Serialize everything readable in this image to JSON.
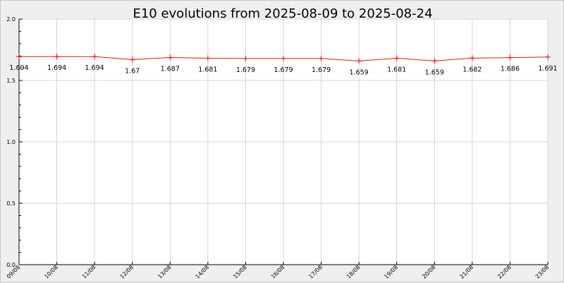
{
  "chart_data": {
    "type": "line",
    "title": "E10 evolutions from 2025-08-09 to 2025-08-24",
    "xlabel": "",
    "ylabel": "",
    "ylim": [
      0.0,
      2.0
    ],
    "y_ticks": [
      "0.0",
      "0.5",
      "1.0",
      "1.5",
      "2.0"
    ],
    "grid": true,
    "categories": [
      "09/08",
      "10/08",
      "11/08",
      "12/08",
      "13/08",
      "14/08",
      "15/08",
      "16/08",
      "17/08",
      "18/08",
      "19/08",
      "20/08",
      "21/08",
      "22/08",
      "23/08"
    ],
    "values": [
      1.694,
      1.694,
      1.694,
      1.67,
      1.687,
      1.681,
      1.679,
      1.679,
      1.679,
      1.659,
      1.681,
      1.659,
      1.682,
      1.686,
      1.691
    ],
    "data_labels": [
      "1.694",
      "1.694",
      "1.694",
      "1.67",
      "1.687",
      "1.681",
      "1.679",
      "1.679",
      "1.679",
      "1.659",
      "1.681",
      "1.659",
      "1.682",
      "1.686",
      "1.691"
    ],
    "line_color": "#cc2200",
    "marker_color": "#ff0000"
  }
}
